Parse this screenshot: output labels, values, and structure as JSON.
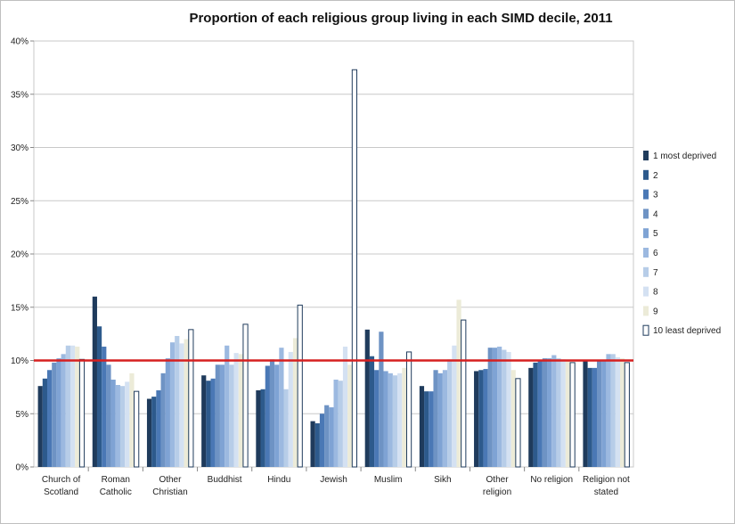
{
  "chart_data": {
    "type": "bar",
    "title": "Proportion  of each religious group living in each SIMD decile, 2011",
    "xlabel": "",
    "ylabel": "",
    "ylim": [
      0,
      40
    ],
    "y_ticks": [
      "0%",
      "5%",
      "10%",
      "15%",
      "20%",
      "25%",
      "30%",
      "35%",
      "40%"
    ],
    "y_tick_values": [
      0,
      5,
      10,
      15,
      20,
      25,
      30,
      35,
      40
    ],
    "reference_line": {
      "value": 10,
      "color": "#d62020"
    },
    "grid": true,
    "legend_position": "right",
    "categories": [
      [
        "Church of",
        "Scotland"
      ],
      [
        "Roman",
        "Catholic"
      ],
      [
        "Other",
        "Christian"
      ],
      [
        "Buddhist"
      ],
      [
        "Hindu"
      ],
      [
        "Jewish"
      ],
      [
        "Muslim"
      ],
      [
        "Sikh"
      ],
      [
        "Other",
        "religion"
      ],
      [
        "No religion"
      ],
      [
        "Religion not",
        "stated"
      ]
    ],
    "series": [
      {
        "name": "1 most deprived",
        "color": "#1f3b5c",
        "values": [
          7.6,
          16.0,
          6.4,
          8.6,
          7.2,
          4.3,
          12.9,
          7.6,
          9.0,
          9.3,
          10.0
        ]
      },
      {
        "name": "2",
        "color": "#2d5a8c",
        "values": [
          8.3,
          13.2,
          6.6,
          8.1,
          7.3,
          4.1,
          10.4,
          7.1,
          9.1,
          9.8,
          9.3
        ]
      },
      {
        "name": "3",
        "color": "#4a78b5",
        "values": [
          9.1,
          11.3,
          7.2,
          8.3,
          9.5,
          5.0,
          9.1,
          7.1,
          9.2,
          10.0,
          9.3
        ]
      },
      {
        "name": "4",
        "color": "#6e93c4",
        "values": [
          9.8,
          9.6,
          8.8,
          9.6,
          10.1,
          5.8,
          12.7,
          9.1,
          11.2,
          10.2,
          10.0
        ]
      },
      {
        "name": "5",
        "color": "#7fa3d4",
        "values": [
          10.2,
          8.2,
          10.2,
          9.6,
          9.6,
          5.6,
          9.0,
          8.8,
          11.2,
          10.2,
          10.0
        ]
      },
      {
        "name": "6",
        "color": "#9cb9e0",
        "values": [
          10.6,
          7.7,
          11.7,
          11.4,
          11.2,
          8.2,
          8.8,
          9.1,
          11.3,
          10.5,
          10.6
        ]
      },
      {
        "name": "7",
        "color": "#b7cde8",
        "values": [
          11.4,
          7.6,
          12.3,
          9.6,
          7.3,
          8.1,
          8.6,
          10.1,
          11.0,
          10.2,
          10.6
        ]
      },
      {
        "name": "8",
        "color": "#d4e1f2",
        "values": [
          11.4,
          8.0,
          11.6,
          10.7,
          10.8,
          11.3,
          8.8,
          11.4,
          10.8,
          10.1,
          10.3
        ]
      },
      {
        "name": "9",
        "color": "#ecebd8",
        "values": [
          11.3,
          8.8,
          12.0,
          10.6,
          12.1,
          9.6,
          9.3,
          15.7,
          9.1,
          10.0,
          10.2
        ]
      },
      {
        "name": "10 least deprived",
        "color": "#ffffff",
        "values": [
          10.1,
          7.1,
          12.9,
          13.4,
          15.2,
          37.3,
          10.8,
          13.8,
          8.3,
          9.8,
          9.8
        ]
      }
    ]
  }
}
